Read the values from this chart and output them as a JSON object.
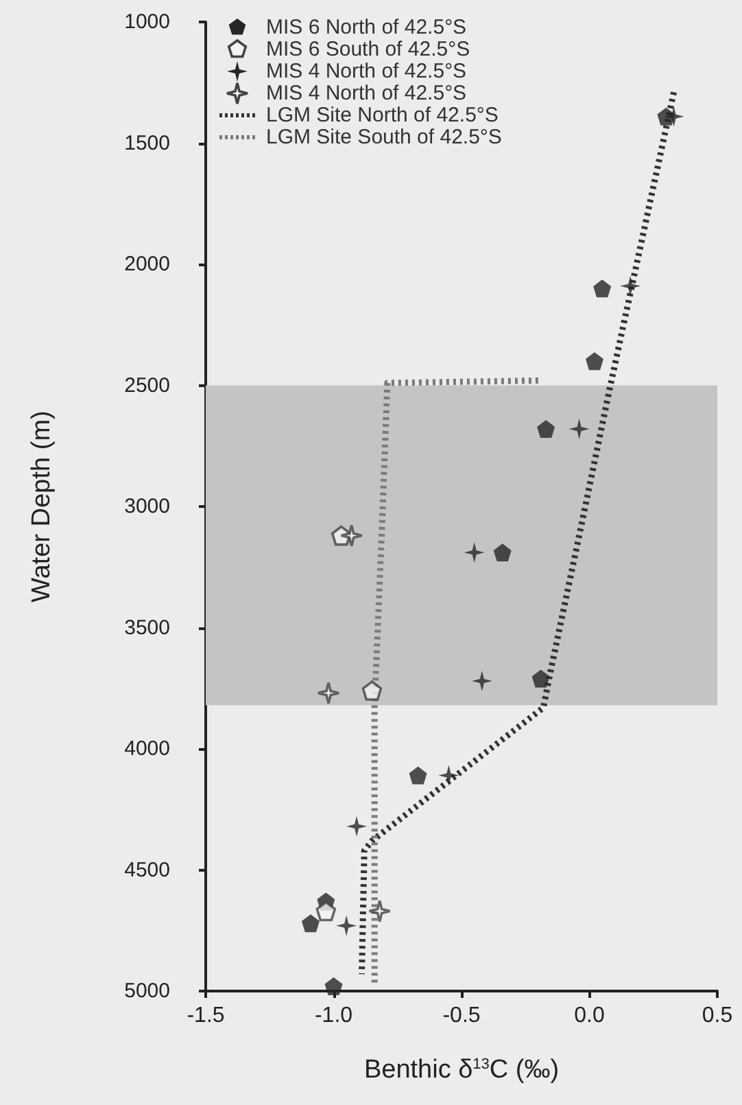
{
  "chart_data": {
    "type": "scatter",
    "xlabel": "Benthic δ$^{13}$C (‰)",
    "ylabel": "Water Depth (m)",
    "xlim": [
      -1.5,
      0.5
    ],
    "xticks": [
      {
        "value": -1.5,
        "label": "-1.5"
      },
      {
        "value": -1,
        "label": "-1.0"
      },
      {
        "value": -0.5,
        "label": "-0.5"
      },
      {
        "value": 0,
        "label": "0.0"
      },
      {
        "value": 0.5,
        "label": "0.5"
      }
    ],
    "ylim": [
      5000,
      1000
    ],
    "yticks": [
      1000,
      1500,
      2000,
      2500,
      3000,
      3500,
      4000,
      4500,
      5000
    ],
    "grid": false,
    "legend": "top left",
    "bands": [
      {
        "axis": "y",
        "from": 2500,
        "to": 3820,
        "color": "#c4c4c4"
      }
    ],
    "series": [
      {
        "name": "MIS 6 North of 42.5°S",
        "color": "#262626",
        "x": [
          0.3,
          0.05,
          0.02,
          -0.17,
          -0.34,
          -0.19,
          -0.67,
          -1.03,
          -1.09,
          -1.0
        ],
        "values": [
          1390,
          2100,
          2400,
          2680,
          3190,
          3710,
          4110,
          4630,
          4720,
          4980
        ]
      },
      {
        "name": "MIS 6 South of 42.5°S",
        "color": "#f4f4f4",
        "x": [
          -0.97,
          -0.85,
          -1.03
        ],
        "values": [
          3120,
          3760,
          4670
        ]
      },
      {
        "name": "MIS 4 North of 42.5°S",
        "marker": "star",
        "color": "#262626",
        "x": [
          0.33,
          0.16,
          -0.04,
          -0.45,
          -0.42,
          -0.55,
          -0.91,
          -0.95
        ],
        "values": [
          1390,
          2090,
          2680,
          3190,
          3720,
          4110,
          4320,
          4730
        ]
      },
      {
        "name": "MIS 4 North of 42.5°S",
        "marker": "star",
        "color": "#f4f4f4",
        "x": [
          -0.93,
          -1.02,
          -0.82
        ],
        "values": [
          3120,
          3770,
          4670
        ]
      },
      {
        "name": "LGM Site North of 42.5°S",
        "type": "line",
        "line_style": "dotted",
        "marker": "none",
        "color": "#333333",
        "x": [
          0.33,
          0.08,
          -0.04,
          -0.15,
          -0.18,
          -0.85,
          -0.88,
          -0.89
        ],
        "values": [
          1290,
          2510,
          3120,
          3670,
          3830,
          4380,
          4420,
          4930
        ]
      },
      {
        "name": "LGM Site South of 42.5°S",
        "type": "line",
        "line_style": "dotted",
        "marker": "none",
        "color": "#7a7a7a",
        "x": [
          -0.2,
          -0.79,
          -0.81,
          -0.84,
          -0.84
        ],
        "values": [
          2480,
          2490,
          3060,
          3820,
          4980
        ]
      }
    ]
  }
}
